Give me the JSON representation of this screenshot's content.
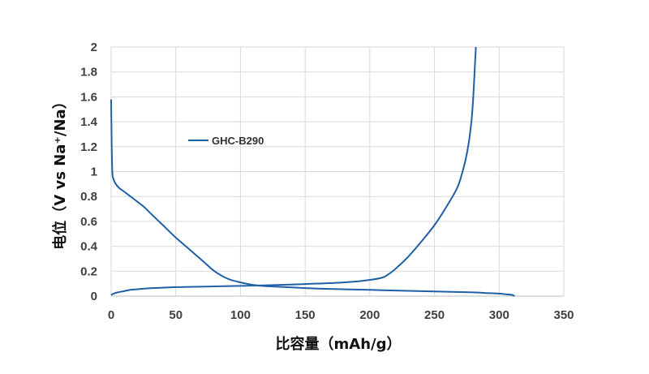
{
  "chart_data": {
    "type": "line",
    "xlabel": "比容量（mAh/g）",
    "ylabel": "电位（V vs Na⁺/Na）",
    "xlim": [
      0,
      350
    ],
    "ylim": [
      0,
      2
    ],
    "x_ticks": [
      "0",
      "50",
      "100",
      "150",
      "200",
      "250",
      "300",
      "350"
    ],
    "y_ticks": [
      "0",
      "0.2",
      "0.4",
      "0.6",
      "0.8",
      "1",
      "1.2",
      "1.4",
      "1.6",
      "1.8",
      "2"
    ],
    "x_tick_values": [
      0,
      50,
      100,
      150,
      200,
      250,
      300,
      350
    ],
    "y_tick_values": [
      0,
      0.2,
      0.4,
      0.6,
      0.8,
      1.0,
      1.2,
      1.4,
      1.6,
      1.8,
      2.0
    ],
    "grid": {
      "horizontal": true,
      "vertical": true
    },
    "legend_position": "upper-left-inside",
    "series_color": "#1f5fa8",
    "series": [
      {
        "name": "GHC-B290",
        "segments": [
          {
            "x": [
              0,
              0.3,
              0.6,
              1,
              1.5,
              3,
              6,
              10,
              15,
              20,
              25,
              30,
              40,
              50,
              60,
              70,
              80,
              90,
              100,
              110,
              120,
              140,
              160,
              180,
              200,
              220,
              240,
              260,
              280,
              290,
              300,
              305,
              310,
              312
            ],
            "y": [
              1.58,
              1.3,
              1.1,
              0.98,
              0.95,
              0.91,
              0.87,
              0.84,
              0.8,
              0.76,
              0.72,
              0.67,
              0.57,
              0.47,
              0.38,
              0.29,
              0.2,
              0.14,
              0.11,
              0.09,
              0.08,
              0.07,
              0.06,
              0.055,
              0.05,
              0.045,
              0.04,
              0.035,
              0.03,
              0.025,
              0.02,
              0.015,
              0.01,
              0.0
            ]
          },
          {
            "x": [
              0,
              2,
              5,
              10,
              15,
              20,
              30,
              40,
              50,
              60,
              80,
              100,
              120,
              150,
              180,
              200,
              210,
              215,
              220,
              230,
              240,
              250,
              260,
              268,
              273,
              276,
              278,
              279,
              280,
              281,
              282
            ],
            "y": [
              0.01,
              0.02,
              0.03,
              0.04,
              0.05,
              0.055,
              0.063,
              0.068,
              0.072,
              0.074,
              0.078,
              0.082,
              0.087,
              0.097,
              0.11,
              0.13,
              0.15,
              0.18,
              0.22,
              0.32,
              0.44,
              0.57,
              0.73,
              0.88,
              1.05,
              1.2,
              1.35,
              1.45,
              1.6,
              1.8,
              2.0
            ]
          }
        ]
      }
    ]
  }
}
